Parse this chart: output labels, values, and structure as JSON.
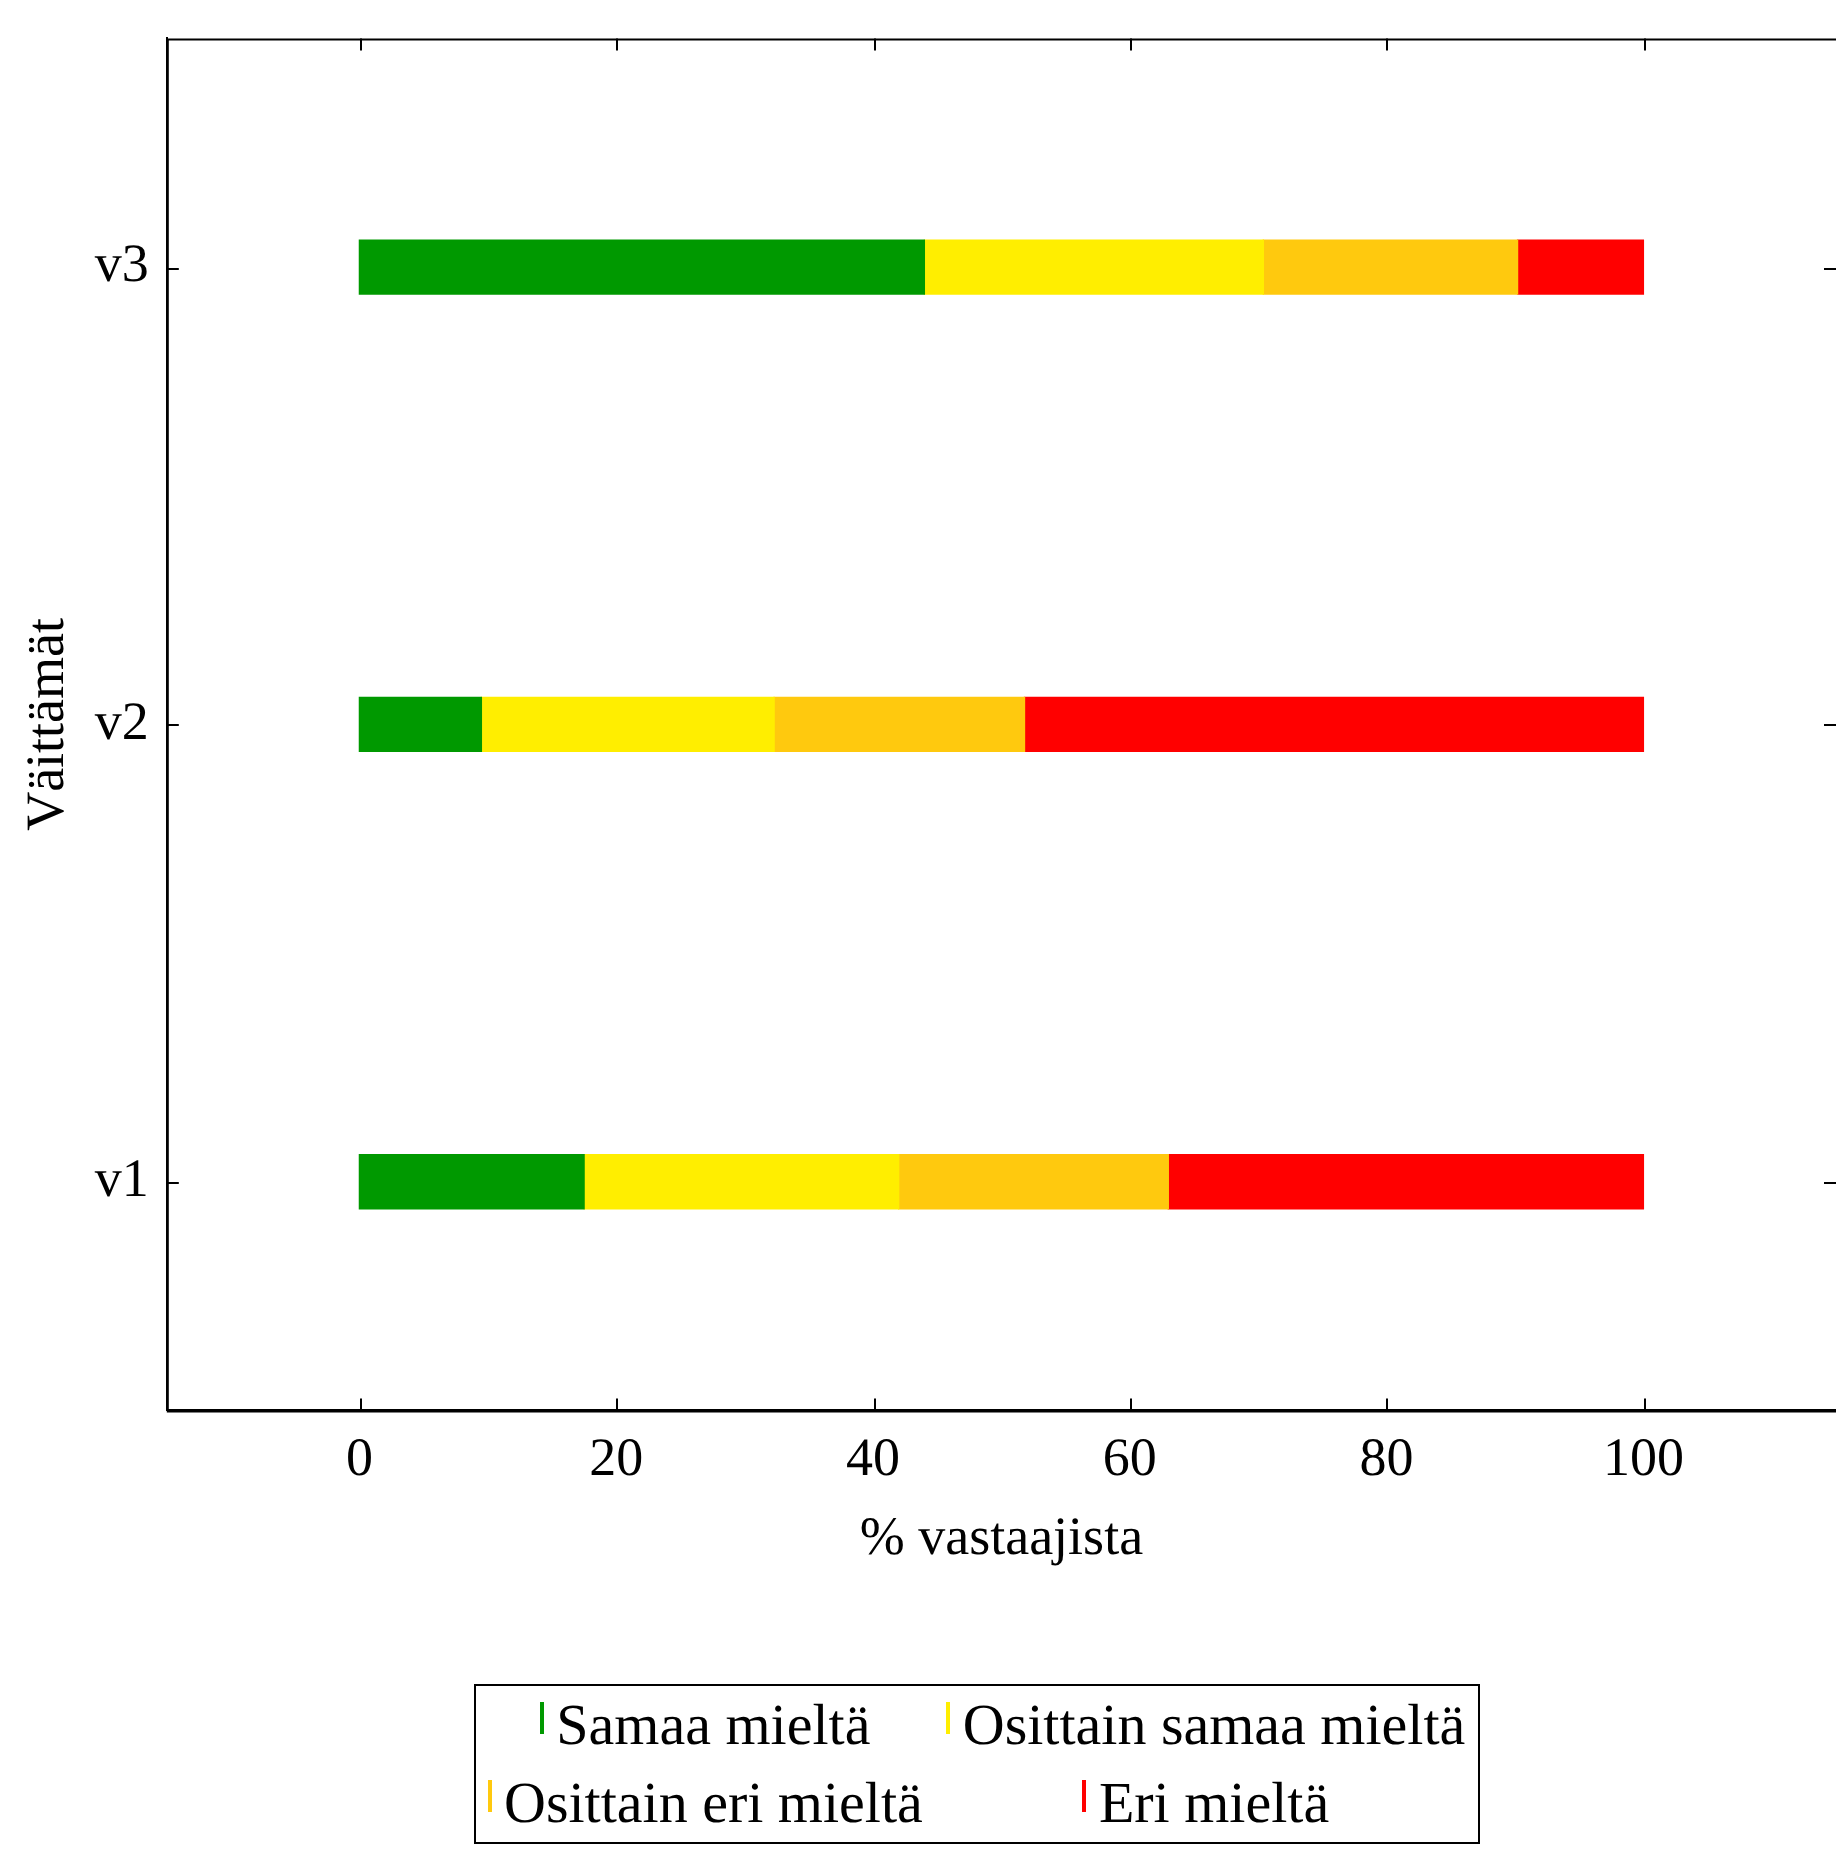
{
  "chart_data": {
    "type": "bar",
    "orientation": "horizontal",
    "stacked": true,
    "xlabel": "% vastaajista",
    "ylabel": "Väittämät",
    "categories": [
      "v3",
      "v2",
      "v1"
    ],
    "series": [
      {
        "name": "Samaa mieltä",
        "color": "#009900",
        "values": [
          44,
          9.5,
          17.5
        ]
      },
      {
        "name": "Osittain samaa mieltä",
        "color": "#ffee00",
        "values": [
          26.4,
          22.8,
          24.5
        ]
      },
      {
        "name": "Osittain eri mieltä",
        "color": "#ffc90e",
        "values": [
          19.8,
          19.5,
          21
        ]
      },
      {
        "name": "Eri mieltä",
        "color": "#ff0000",
        "values": [
          9.8,
          48.2,
          37
        ]
      }
    ],
    "xlim": [
      -15,
      115
    ],
    "xticks": [
      0,
      20,
      40,
      60,
      80,
      100
    ],
    "grid": false,
    "legend": "bottom"
  }
}
